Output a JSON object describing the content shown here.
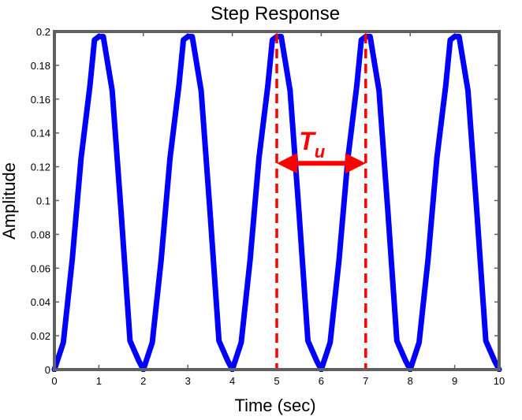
{
  "chart_data": {
    "type": "line",
    "title": "Step Response",
    "xlabel": "Time (sec)",
    "ylabel": "Amplitude",
    "xlim": [
      0,
      10
    ],
    "ylim": [
      0,
      0.2
    ],
    "xticks": [
      "0",
      "1",
      "2",
      "3",
      "4",
      "5",
      "6",
      "7",
      "8",
      "9",
      "10"
    ],
    "yticks": [
      "0",
      "0.02",
      "0.04",
      "0.06",
      "0.08",
      "0.1",
      "0.12",
      "0.14",
      "0.16",
      "0.18",
      "0.2"
    ],
    "grid": false,
    "series": [
      {
        "color": "#0000ff",
        "x": [
          0,
          0.2,
          0.4,
          0.6,
          0.8,
          0.9,
          1.0,
          1.1,
          1.3,
          1.5,
          1.7,
          1.9,
          2.0,
          2.2,
          2.4,
          2.6,
          2.8,
          2.9,
          3.0,
          3.1,
          3.3,
          3.5,
          3.7,
          3.9,
          4.0,
          4.2,
          4.4,
          4.6,
          4.8,
          4.9,
          5.0,
          5.1,
          5.3,
          5.5,
          5.7,
          5.9,
          6.0,
          6.2,
          6.4,
          6.6,
          6.8,
          6.9,
          7.0,
          7.1,
          7.3,
          7.5,
          7.7,
          7.9,
          8.0,
          8.2,
          8.4,
          8.6,
          8.8,
          8.9,
          9.0,
          9.1,
          9.3,
          9.5,
          9.7,
          9.9,
          10.0
        ],
        "y": [
          0,
          0.016,
          0.065,
          0.125,
          0.168,
          0.195,
          0.197,
          0.197,
          0.165,
          0.093,
          0.017,
          0.005,
          0,
          0.016,
          0.065,
          0.125,
          0.168,
          0.195,
          0.197,
          0.197,
          0.165,
          0.093,
          0.017,
          0.005,
          0,
          0.016,
          0.065,
          0.125,
          0.168,
          0.195,
          0.197,
          0.197,
          0.165,
          0.093,
          0.017,
          0.005,
          0,
          0.016,
          0.065,
          0.125,
          0.168,
          0.195,
          0.197,
          0.197,
          0.165,
          0.093,
          0.017,
          0.005,
          0,
          0.016,
          0.065,
          0.125,
          0.168,
          0.195,
          0.197,
          0.197,
          0.165,
          0.093,
          0.017,
          0.005,
          0
        ]
      }
    ],
    "annotations": {
      "markers": [
        5,
        7
      ],
      "marker_color": "#ff0000",
      "arrow_y": 0.122,
      "arrow_from": 5,
      "arrow_to": 7,
      "label_main": "T",
      "label_sub": "u",
      "label_x": 5.5,
      "label_y": 0.13
    }
  }
}
